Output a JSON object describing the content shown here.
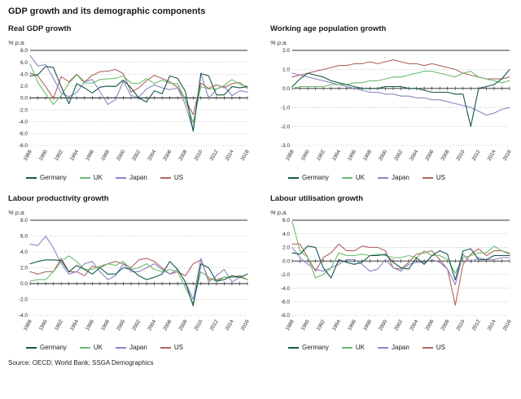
{
  "page_title": "GDP growth and its demographic components",
  "source_note": "Source: OECD; World Bank; SSGA Demographics",
  "colors": {
    "Germany": "#15564b",
    "UK": "#6cbb6c",
    "Japan": "#8a85c3",
    "US": "#b16360"
  },
  "x_years": [
    1988,
    1989,
    1990,
    1991,
    1992,
    1993,
    1994,
    1995,
    1996,
    1997,
    1998,
    1999,
    2000,
    2001,
    2002,
    2003,
    2004,
    2005,
    2006,
    2007,
    2008,
    2009,
    2010,
    2011,
    2012,
    2013,
    2014,
    2015,
    2016
  ],
  "x_tick_years": [
    1988,
    1990,
    1992,
    1994,
    1996,
    1998,
    2000,
    2002,
    2004,
    2006,
    2008,
    2010,
    2012,
    2014,
    2016
  ],
  "legend_labels": [
    "Germany",
    "UK",
    "Japan",
    "US"
  ],
  "chart_data": [
    {
      "type": "line",
      "title": "Real GDP growth",
      "ylabel": "% p.a.",
      "ylim": [
        -8,
        8
      ],
      "ytick_step": 2,
      "grid": "dotted",
      "legend_position": "bottom",
      "series": [
        {
          "name": "US",
          "values": [
            4.2,
            3.7,
            1.9,
            -0.1,
            3.6,
            2.7,
            4.0,
            2.7,
            3.8,
            4.4,
            4.5,
            4.8,
            4.1,
            1.0,
            1.7,
            2.9,
            3.8,
            3.3,
            2.7,
            1.8,
            -0.3,
            -2.8,
            2.5,
            1.6,
            2.2,
            1.7,
            2.4,
            2.6,
            1.6
          ]
        },
        {
          "name": "Japan",
          "values": [
            7.1,
            5.4,
            5.6,
            3.3,
            0.8,
            0.2,
            0.9,
            2.7,
            3.1,
            1.1,
            -1.1,
            -0.3,
            2.8,
            0.4,
            0.1,
            1.5,
            2.2,
            1.7,
            1.4,
            1.7,
            -1.1,
            -5.4,
            4.2,
            -0.1,
            1.5,
            2.0,
            0.4,
            1.2,
            1.0
          ]
        },
        {
          "name": "UK",
          "values": [
            5.7,
            2.6,
            0.7,
            -1.1,
            0.4,
            2.5,
            3.9,
            2.5,
            2.5,
            3.1,
            3.2,
            3.3,
            3.7,
            2.5,
            2.4,
            3.3,
            2.4,
            3.0,
            2.5,
            2.4,
            -0.3,
            -4.2,
            1.9,
            1.5,
            1.5,
            2.1,
            3.1,
            2.3,
            1.9
          ]
        },
        {
          "name": "Germany",
          "values": [
            3.7,
            3.9,
            5.3,
            5.1,
            1.9,
            -1.0,
            2.4,
            1.7,
            0.8,
            1.8,
            2.0,
            1.9,
            3.0,
            1.7,
            0.0,
            -0.7,
            1.2,
            0.7,
            3.7,
            3.3,
            1.1,
            -5.6,
            4.1,
            3.7,
            0.5,
            0.5,
            1.9,
            1.7,
            1.9
          ]
        }
      ]
    },
    {
      "type": "line",
      "title": "Working age population growth",
      "ylabel": "% p.a.",
      "ylim": [
        -3,
        2
      ],
      "ytick_step": 1,
      "grid": "dotted",
      "legend_position": "bottom",
      "series": [
        {
          "name": "US",
          "values": [
            0.6,
            0.7,
            0.8,
            0.9,
            1.0,
            1.1,
            1.2,
            1.2,
            1.3,
            1.3,
            1.4,
            1.3,
            1.4,
            1.5,
            1.4,
            1.3,
            1.3,
            1.2,
            1.3,
            1.2,
            1.1,
            1.0,
            0.8,
            0.7,
            0.6,
            0.5,
            0.5,
            0.5,
            0.6
          ]
        },
        {
          "name": "Japan",
          "values": [
            0.8,
            0.7,
            0.6,
            0.5,
            0.4,
            0.3,
            0.2,
            0.1,
            0.0,
            -0.1,
            -0.2,
            -0.2,
            -0.3,
            -0.3,
            -0.4,
            -0.4,
            -0.5,
            -0.5,
            -0.6,
            -0.6,
            -0.7,
            -0.8,
            -0.9,
            -1.0,
            -1.2,
            -1.4,
            -1.3,
            -1.1,
            -1.0
          ]
        },
        {
          "name": "UK",
          "values": [
            0.0,
            0.1,
            0.1,
            0.1,
            0.1,
            0.2,
            0.2,
            0.2,
            0.3,
            0.3,
            0.4,
            0.4,
            0.5,
            0.6,
            0.6,
            0.7,
            0.8,
            0.9,
            0.9,
            0.8,
            0.7,
            0.6,
            0.8,
            0.9,
            0.6,
            0.5,
            0.4,
            0.3,
            0.4
          ]
        },
        {
          "name": "Germany",
          "values": [
            0.1,
            0.5,
            0.8,
            0.7,
            0.6,
            0.4,
            0.3,
            0.2,
            0.1,
            0.0,
            0.0,
            0.0,
            0.1,
            0.1,
            0.1,
            0.0,
            0.0,
            -0.1,
            -0.2,
            -0.2,
            -0.2,
            -0.3,
            -0.3,
            -2.0,
            0.0,
            0.1,
            0.2,
            0.5,
            1.0
          ]
        }
      ]
    },
    {
      "type": "line",
      "title": "Labour productivity growth",
      "ylabel": "% p.a.",
      "ylim": [
        -4,
        8
      ],
      "ytick_step": 2,
      "grid": "dotted",
      "legend_position": "bottom",
      "series": [
        {
          "name": "US",
          "values": [
            1.5,
            1.2,
            1.5,
            1.5,
            3.2,
            1.5,
            1.5,
            1.0,
            2.2,
            2.0,
            2.5,
            2.8,
            2.5,
            2.0,
            3.0,
            3.2,
            2.8,
            2.0,
            1.2,
            1.5,
            1.0,
            2.5,
            3.0,
            0.5,
            0.5,
            0.8,
            0.8,
            1.0,
            0.5
          ]
        },
        {
          "name": "Japan",
          "values": [
            5.0,
            4.8,
            6.0,
            4.5,
            2.5,
            1.2,
            1.5,
            2.5,
            2.8,
            1.5,
            0.5,
            1.0,
            2.5,
            1.5,
            1.5,
            2.0,
            2.5,
            1.8,
            1.2,
            1.8,
            0.2,
            -2.0,
            3.2,
            0.2,
            1.0,
            1.8,
            0.2,
            0.8,
            0.5
          ]
        },
        {
          "name": "UK",
          "values": [
            0.3,
            0.5,
            0.5,
            1.5,
            2.8,
            3.5,
            2.8,
            1.8,
            1.8,
            2.2,
            2.5,
            2.3,
            2.8,
            1.8,
            2.0,
            2.5,
            1.8,
            1.5,
            1.8,
            1.5,
            -0.5,
            -2.5,
            1.5,
            0.8,
            0.3,
            0.8,
            0.8,
            0.8,
            0.5
          ]
        },
        {
          "name": "Germany",
          "values": [
            2.5,
            2.8,
            3.0,
            3.0,
            2.9,
            1.5,
            2.3,
            1.8,
            1.2,
            2.0,
            1.2,
            1.2,
            2.0,
            1.8,
            1.0,
            0.5,
            0.8,
            1.2,
            2.8,
            1.8,
            0.2,
            -2.8,
            2.5,
            2.0,
            0.3,
            0.5,
            1.0,
            0.8,
            1.2
          ]
        }
      ]
    },
    {
      "type": "line",
      "title": "Labour utilisation growth",
      "ylabel": "% p.a.",
      "ylim": [
        -8,
        6
      ],
      "ytick_step": 2,
      "grid": "dotted",
      "legend_position": "bottom",
      "series": [
        {
          "name": "US",
          "values": [
            2.5,
            2.5,
            0.5,
            -1.5,
            0.5,
            1.2,
            2.5,
            1.5,
            1.5,
            2.2,
            2.0,
            2.0,
            1.5,
            -1.0,
            -1.2,
            -0.2,
            1.0,
            1.2,
            1.5,
            0.2,
            -1.2,
            -6.5,
            -0.5,
            1.0,
            1.8,
            0.8,
            1.5,
            1.5,
            1.0
          ]
        },
        {
          "name": "Japan",
          "values": [
            2.0,
            0.5,
            -0.5,
            -1.2,
            -1.5,
            -1.0,
            -0.5,
            0.2,
            0.2,
            -0.5,
            -1.5,
            -1.2,
            0.2,
            -1.0,
            -1.5,
            -0.5,
            -0.2,
            -0.2,
            0.2,
            -0.2,
            -1.2,
            -3.5,
            1.0,
            -0.2,
            0.5,
            0.2,
            0.2,
            0.5,
            0.5
          ]
        },
        {
          "name": "UK",
          "values": [
            5.8,
            1.5,
            0.5,
            -2.5,
            -2.0,
            -1.0,
            1.2,
            0.8,
            0.8,
            1.0,
            0.8,
            1.0,
            0.8,
            0.5,
            0.5,
            0.8,
            0.5,
            1.5,
            0.8,
            0.8,
            0.2,
            -1.8,
            0.5,
            0.8,
            1.2,
            1.2,
            2.2,
            1.5,
            1.2
          ]
        },
        {
          "name": "Germany",
          "values": [
            1.2,
            1.0,
            2.2,
            2.0,
            -1.0,
            -2.5,
            0.2,
            -0.2,
            -0.5,
            -0.2,
            0.8,
            0.8,
            1.0,
            -0.2,
            -1.0,
            -1.2,
            0.5,
            -0.5,
            0.8,
            1.5,
            1.0,
            -2.8,
            1.5,
            1.8,
            0.2,
            0.2,
            0.8,
            0.8,
            0.8
          ]
        }
      ]
    }
  ]
}
